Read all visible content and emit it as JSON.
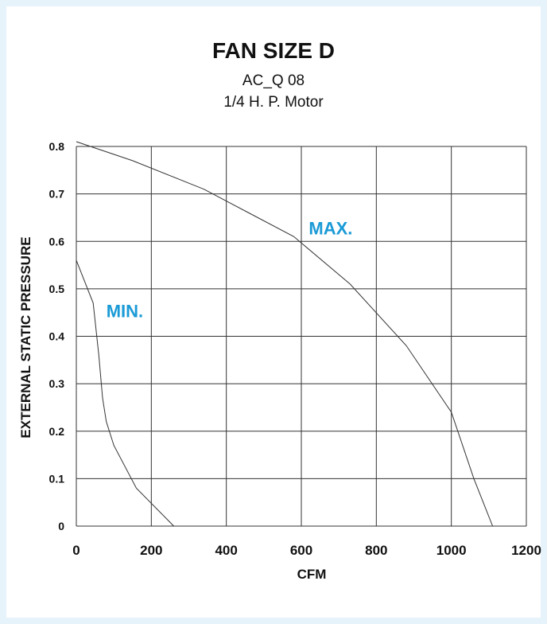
{
  "chart_data": {
    "type": "line",
    "title": "FAN SIZE D",
    "subtitle_lines": [
      "AC_Q 08",
      "1/4 H. P. Motor"
    ],
    "xlabel": "CFM",
    "ylabel": "EXTERNAL STATIC PRESSURE",
    "xlim": [
      0,
      1200
    ],
    "ylim": [
      0,
      0.8
    ],
    "x_ticks": [
      0,
      200,
      400,
      600,
      800,
      1000,
      1200
    ],
    "x_tick_labels": [
      "0",
      "200",
      "400",
      "600",
      "800",
      "1000",
      "1200"
    ],
    "y_ticks": [
      0,
      0.1,
      0.2,
      0.3,
      0.4,
      0.5,
      0.6,
      0.7,
      0.8
    ],
    "y_tick_labels": [
      "0",
      "0.1",
      "0.2",
      "0.3",
      "0.4",
      "0.5",
      "0.6",
      "0.7",
      "0.8"
    ],
    "grid": true,
    "series": [
      {
        "name": "MAX.",
        "label_color": "#1a9ad6",
        "label_at": [
          620,
          0.615
        ],
        "x": [
          0,
          150,
          340,
          460,
          580,
          730,
          880,
          1000,
          1060,
          1110
        ],
        "y": [
          0.81,
          0.77,
          0.71,
          0.66,
          0.61,
          0.51,
          0.38,
          0.24,
          0.1,
          0
        ]
      },
      {
        "name": "MIN.",
        "label_color": "#1a9ad6",
        "label_at": [
          80,
          0.44
        ],
        "x": [
          0,
          45,
          60,
          70,
          80,
          100,
          160,
          260
        ],
        "y": [
          0.56,
          0.47,
          0.36,
          0.27,
          0.22,
          0.17,
          0.08,
          0
        ]
      }
    ],
    "line_color": "#333333",
    "grid_color": "#333333"
  }
}
